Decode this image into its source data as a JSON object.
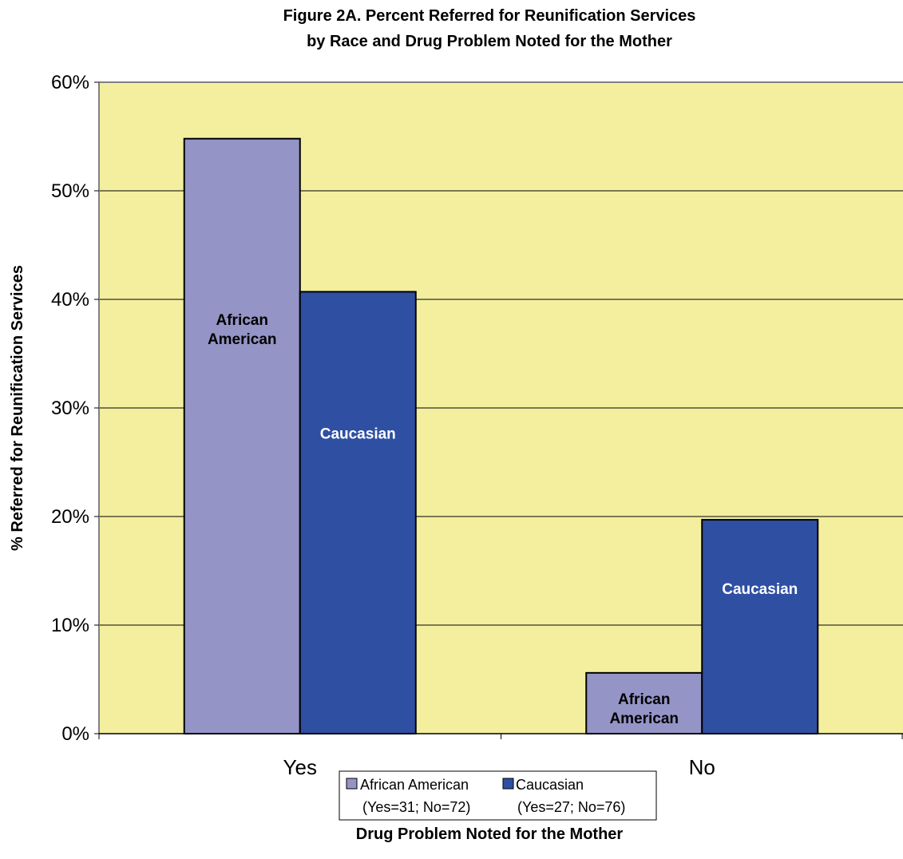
{
  "chart_data": {
    "type": "bar",
    "title_lines": [
      "Figure 2A. Percent Referred for Reunification Services",
      "by Race and Drug Problem Noted for the Mother"
    ],
    "xlabel": "Drug Problem Noted for the Mother",
    "ylabel": "% Referred for Reunification Services",
    "categories": [
      "Yes",
      "No"
    ],
    "yticks": [
      "0%",
      "10%",
      "20%",
      "30%",
      "40%",
      "50%",
      "60%"
    ],
    "ylim": [
      0,
      60
    ],
    "grid": true,
    "plot_background": "#F4EF9F",
    "series": [
      {
        "name": "African American",
        "legend_note": "(Yes=31; No=72)",
        "color": "#9494C6",
        "label_color": "#000000",
        "values": [
          54.8,
          5.6
        ],
        "bar_labels": [
          [
            "African",
            "American"
          ],
          [
            "African",
            "American"
          ]
        ]
      },
      {
        "name": "Caucasian",
        "legend_note": "(Yes=27; No=76)",
        "color": "#2F4FA3",
        "label_color": "#FFFFFF",
        "values": [
          40.7,
          19.7
        ],
        "bar_labels": [
          [
            "Caucasian"
          ],
          [
            "Caucasian"
          ]
        ]
      }
    ],
    "legend_position": "bottom-center"
  }
}
